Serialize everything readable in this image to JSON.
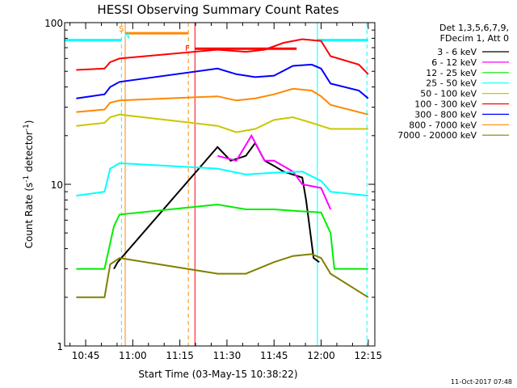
{
  "chart_data": {
    "type": "line",
    "title": "HESSI Observing Summary Count Rates",
    "xlabel": "Start Time (03-May-15 10:38:22)",
    "ylabel_parts": [
      "Count Rate (s",
      "-1",
      " detector",
      "-1",
      ")"
    ],
    "yscale": "log",
    "ylim": [
      1,
      100
    ],
    "y_ticks": [
      {
        "value": 1,
        "label": "1"
      },
      {
        "value": 10,
        "label": "10"
      },
      {
        "value": 100,
        "label": "100"
      }
    ],
    "xlim": [
      10.6383,
      12.285
    ],
    "x_ticks": [
      {
        "value": 10.75,
        "label": "10:45"
      },
      {
        "value": 11.0,
        "label": "11:00"
      },
      {
        "value": 11.25,
        "label": "11:15"
      },
      {
        "value": 11.5,
        "label": "11:30"
      },
      {
        "value": 11.75,
        "label": "11:45"
      },
      {
        "value": 12.0,
        "label": "12:00"
      },
      {
        "value": 12.25,
        "label": "12:15"
      }
    ],
    "legend_header": [
      "Det 1,3,5,6,7,9,",
      "FDecim 1, Att 0"
    ],
    "legend_placement": "top-right, outside plot",
    "series": [
      {
        "name": "3 - 6 keV",
        "color": "#000000",
        "values": [
          [
            10.9,
            3.0
          ],
          [
            10.92,
            3.3
          ],
          [
            11.45,
            17
          ],
          [
            11.52,
            14
          ],
          [
            11.6,
            15
          ],
          [
            11.65,
            18
          ],
          [
            11.7,
            14
          ],
          [
            11.75,
            13
          ],
          [
            11.8,
            12
          ],
          [
            11.9,
            11
          ],
          [
            11.92,
            8
          ],
          [
            11.96,
            3.5
          ],
          [
            11.99,
            3.3
          ]
        ]
      },
      {
        "name": "6 - 12 keV",
        "color": "#ff00ff",
        "values": [
          [
            11.45,
            15
          ],
          [
            11.55,
            14
          ],
          [
            11.63,
            20
          ],
          [
            11.7,
            14
          ],
          [
            11.75,
            14
          ],
          [
            11.85,
            12
          ],
          [
            11.9,
            10
          ],
          [
            12.0,
            9.5
          ],
          [
            12.05,
            7
          ]
        ]
      },
      {
        "name": "12 - 25 keV",
        "color": "#00ee00",
        "values": [
          [
            10.7,
            3.0
          ],
          [
            10.85,
            3.0
          ],
          [
            10.9,
            5.5
          ],
          [
            10.93,
            6.5
          ],
          [
            11.45,
            7.5
          ],
          [
            11.6,
            7.0
          ],
          [
            11.75,
            7.0
          ],
          [
            11.9,
            6.8
          ],
          [
            12.0,
            6.7
          ],
          [
            12.05,
            5.0
          ],
          [
            12.07,
            3.0
          ],
          [
            12.25,
            3.0
          ]
        ]
      },
      {
        "name": "25 - 50 keV",
        "color": "#00ffff",
        "values": [
          [
            10.7,
            8.5
          ],
          [
            10.85,
            9.0
          ],
          [
            10.88,
            12.5
          ],
          [
            10.93,
            13.5
          ],
          [
            11.45,
            12.5
          ],
          [
            11.6,
            11.5
          ],
          [
            11.75,
            11.8
          ],
          [
            11.9,
            12
          ],
          [
            12.0,
            10.5
          ],
          [
            12.05,
            9.0
          ],
          [
            12.25,
            8.5
          ]
        ]
      },
      {
        "name": "50 - 100 keV",
        "color": "#c8c800",
        "values": [
          [
            10.7,
            23
          ],
          [
            10.85,
            24
          ],
          [
            10.88,
            26
          ],
          [
            10.93,
            27
          ],
          [
            11.45,
            23
          ],
          [
            11.55,
            21
          ],
          [
            11.65,
            22
          ],
          [
            11.75,
            25
          ],
          [
            11.85,
            26
          ],
          [
            11.95,
            24
          ],
          [
            12.0,
            23
          ],
          [
            12.05,
            22
          ],
          [
            12.25,
            22
          ]
        ]
      },
      {
        "name": "100 - 300 keV",
        "color": "#ff0000",
        "values": [
          [
            10.7,
            51
          ],
          [
            10.85,
            52
          ],
          [
            10.88,
            57
          ],
          [
            10.93,
            60
          ],
          [
            11.45,
            68
          ],
          [
            11.6,
            66
          ],
          [
            11.7,
            68
          ],
          [
            11.8,
            75
          ],
          [
            11.9,
            79
          ],
          [
            11.95,
            78
          ],
          [
            12.0,
            77
          ],
          [
            12.05,
            62
          ],
          [
            12.2,
            55
          ],
          [
            12.25,
            48
          ]
        ]
      },
      {
        "name": "300 - 800 keV",
        "color": "#0000ff",
        "values": [
          [
            10.7,
            34
          ],
          [
            10.85,
            36
          ],
          [
            10.88,
            40
          ],
          [
            10.93,
            43
          ],
          [
            11.45,
            52
          ],
          [
            11.55,
            48
          ],
          [
            11.65,
            46
          ],
          [
            11.75,
            47
          ],
          [
            11.85,
            54
          ],
          [
            11.95,
            55
          ],
          [
            12.0,
            52
          ],
          [
            12.05,
            42
          ],
          [
            12.2,
            38
          ],
          [
            12.25,
            34
          ]
        ]
      },
      {
        "name": "800 - 7000 keV",
        "color": "#ff8800",
        "values": [
          [
            10.7,
            28
          ],
          [
            10.85,
            29
          ],
          [
            10.88,
            32
          ],
          [
            10.93,
            33
          ],
          [
            11.45,
            35
          ],
          [
            11.55,
            33
          ],
          [
            11.65,
            34
          ],
          [
            11.75,
            36
          ],
          [
            11.85,
            39
          ],
          [
            11.95,
            38
          ],
          [
            12.0,
            35
          ],
          [
            12.05,
            31
          ],
          [
            12.25,
            27
          ]
        ]
      },
      {
        "name": "7000 - 20000 keV",
        "color": "#808000",
        "values": [
          [
            10.7,
            2.0
          ],
          [
            10.85,
            2.0
          ],
          [
            10.88,
            3.2
          ],
          [
            10.93,
            3.5
          ],
          [
            11.45,
            2.8
          ],
          [
            11.6,
            2.8
          ],
          [
            11.75,
            3.3
          ],
          [
            11.85,
            3.6
          ],
          [
            11.95,
            3.7
          ],
          [
            12.0,
            3.5
          ],
          [
            12.05,
            2.8
          ],
          [
            12.25,
            2.0
          ]
        ]
      }
    ],
    "top_lines": [
      {
        "color": "#00ffff",
        "y": 78,
        "ranges": [
          [
            10.6383,
            10.94
          ],
          [
            11.98,
            12.25
          ]
        ]
      },
      {
        "color": "#ff8800",
        "y": 86,
        "ranges": [
          [
            10.96,
            11.295
          ]
        ]
      },
      {
        "color": "#ff0000",
        "y": 69,
        "ranges": [
          [
            11.33,
            11.87
          ]
        ]
      }
    ],
    "vlines": [
      {
        "x": 10.94,
        "color": "#00ffff",
        "style": "dashed"
      },
      {
        "x": 10.96,
        "color": "#ff8800",
        "style": "solid"
      },
      {
        "x": 11.295,
        "color": "#ff8800",
        "style": "dashed"
      },
      {
        "x": 11.33,
        "color": "#ff0000",
        "style": "solid"
      },
      {
        "x": 11.98,
        "color": "#00ffff",
        "style": "solid"
      },
      {
        "x": 12.243,
        "color": "#00ffff",
        "style": "dashed"
      },
      {
        "x": 10.6383,
        "color": "#00ffff",
        "style": "solid"
      }
    ],
    "markers": [
      {
        "text": "S",
        "x": 10.94,
        "y": 88,
        "color": "#ff8800"
      },
      {
        "text": "N",
        "x": 10.97,
        "y": 80,
        "color": "#00ffff"
      },
      {
        "text": "F",
        "x": 11.29,
        "y": 67,
        "color": "#ff0000"
      }
    ]
  },
  "footer": "11-Oct-2017 07:48"
}
